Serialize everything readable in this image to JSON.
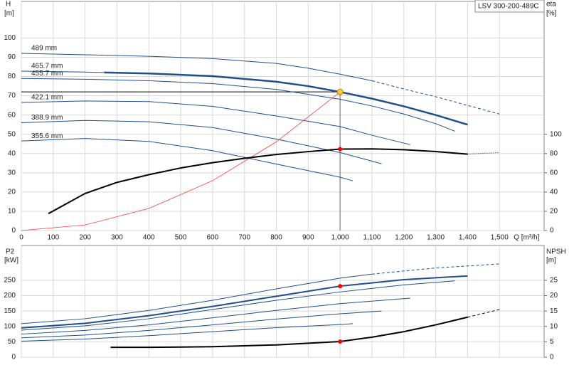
{
  "chart_data": [
    {
      "type": "line",
      "title": "LSV 300-200-489C",
      "x_label": "Q [m³/h]",
      "y_label": "H",
      "y_unit": "[m]",
      "y2_label": "eta",
      "y2_unit": "[%]",
      "xlim": [
        0,
        1640
      ],
      "xticks": [
        0,
        100,
        200,
        300,
        400,
        500,
        600,
        700,
        800,
        900,
        {
          "value": 1000,
          "label": "1,000"
        },
        {
          "value": 1100,
          "label": "1,100"
        },
        {
          "value": 1200,
          "label": "1,200"
        },
        {
          "value": 1300,
          "label": "1,300"
        },
        {
          "value": 1400,
          "label": "1,400"
        },
        {
          "value": 1500,
          "label": "1,500"
        }
      ],
      "ylim": [
        0,
        119
      ],
      "yticks": [
        0,
        10,
        20,
        30,
        40,
        50,
        60,
        70,
        80,
        90,
        100
      ],
      "y2lim": [
        0,
        238
      ],
      "y2ticks": [
        0,
        20,
        40,
        60,
        80,
        100
      ],
      "grid": true,
      "series": [
        {
          "name": "489 mm",
          "color": "#1f4f8a",
          "line_width": 1,
          "line_style": "solid",
          "x": [
            0,
            200,
            400,
            600,
            800,
            900,
            1000,
            1100
          ],
          "values": [
            92,
            91.3,
            90.5,
            89.3,
            86.8,
            84.3,
            81.2,
            77.8
          ]
        },
        {
          "color": "#1f4f8a",
          "line_width": 1,
          "line_style": "dashed",
          "x": [
            1100,
            1200,
            1300,
            1400,
            1500
          ],
          "values": [
            77.8,
            73.5,
            69.5,
            65,
            60.5
          ]
        },
        {
          "name": "465.7 mm",
          "color": "#1f4f8a",
          "line_width": 1,
          "line_style": "solid",
          "x": [
            0,
            200,
            400,
            600,
            800,
            900,
            1000,
            1100,
            1200,
            1300,
            1400
          ],
          "values": [
            82.8,
            82.3,
            81.6,
            80.2,
            77.3,
            75,
            72,
            68.5,
            64.5,
            60,
            55
          ]
        },
        {
          "color": "#1f4f8a",
          "line_width": 2.5,
          "line_style": "solid",
          "x": [
            260,
            400,
            600,
            800,
            900,
            1000,
            1100,
            1200,
            1300,
            1400
          ],
          "values": [
            82.1,
            81.6,
            80.2,
            77.3,
            75,
            72,
            68.5,
            64.5,
            60,
            55
          ]
        },
        {
          "name": "455.7 mm",
          "color": "#1f4f8a",
          "line_width": 1,
          "line_style": "solid",
          "x": [
            0,
            200,
            400,
            600,
            800,
            1000,
            1100,
            1200,
            1300,
            1360
          ],
          "values": [
            79,
            78.6,
            77.8,
            76.3,
            73.3,
            68.2,
            64.7,
            60.5,
            55.5,
            51.6
          ]
        },
        {
          "name": "422.1 mm",
          "color": "#1f4f8a",
          "line_width": 1,
          "line_style": "solid",
          "x": [
            0,
            200,
            400,
            600,
            800,
            1000,
            1100,
            1220
          ],
          "values": [
            66.5,
            67.3,
            67,
            64.5,
            59.5,
            54,
            49.5,
            44.6
          ]
        },
        {
          "name": "388.9 mm",
          "color": "#1f4f8a",
          "line_width": 1,
          "line_style": "solid",
          "x": [
            0,
            200,
            400,
            600,
            800,
            1000,
            1130
          ],
          "values": [
            56,
            57.2,
            56.5,
            53.5,
            47.5,
            40.5,
            34.7
          ]
        },
        {
          "name": "355.6 mm",
          "color": "#1f4f8a",
          "line_width": 1,
          "line_style": "solid",
          "x": [
            0,
            200,
            400,
            600,
            800,
            1000,
            1040
          ],
          "values": [
            46.5,
            47.8,
            46.3,
            41.5,
            34.5,
            27.7,
            25.8
          ]
        },
        {
          "color": "#ff3b3b",
          "line_width": 0.8,
          "line_style": "solid",
          "x": [
            0,
            200,
            400,
            600,
            800,
            1000
          ],
          "values": [
            0,
            2.9,
            11.5,
            25.9,
            46.1,
            72
          ]
        },
        {
          "axis": "y2",
          "color": "#000000",
          "line_width": 2,
          "line_style": "solid",
          "x": [
            85,
            200,
            300,
            400,
            500,
            600,
            700,
            800,
            900,
            1000,
            1100,
            1200,
            1300,
            1400
          ],
          "values": [
            17.6,
            38.5,
            50,
            58,
            65,
            70.5,
            75,
            79,
            82,
            84.6,
            84.8,
            84,
            82,
            79.4
          ]
        },
        {
          "axis": "y2",
          "color": "#000000",
          "line_width": 1,
          "line_style": "dotted",
          "x": [
            1400,
            1500
          ],
          "values": [
            79.4,
            81
          ]
        }
      ],
      "markers": [
        {
          "x": 1000,
          "y": 72,
          "color": "#ffcc33"
        },
        {
          "x": 1000,
          "y": 84.6,
          "axis": "y2",
          "color": "#ff0000"
        }
      ]
    },
    {
      "type": "line",
      "y_label": "P2",
      "y_unit": "[kW]",
      "y2_label": "NPSH",
      "y2_unit": "[m]",
      "xlim": [
        0,
        1640
      ],
      "xticks": [
        0,
        100,
        200,
        300,
        400,
        500,
        600,
        700,
        800,
        900,
        1000,
        1100,
        1200,
        1300,
        1400,
        1500
      ],
      "ylim": [
        0,
        363
      ],
      "yticks": [
        0,
        50,
        100,
        150,
        200,
        250
      ],
      "y2lim": [
        0,
        36.3
      ],
      "y2ticks": [
        0,
        5,
        10,
        15,
        20,
        25
      ],
      "grid": true,
      "series": [
        {
          "color": "#1f4f8a",
          "line_width": 1,
          "line_style": "solid",
          "x": [
            0,
            200,
            400,
            600,
            800,
            1000,
            1100
          ],
          "values": [
            109,
            125,
            152,
            185,
            222,
            257,
            270
          ]
        },
        {
          "color": "#1f4f8a",
          "line_width": 1,
          "line_style": "dashed",
          "x": [
            1100,
            1300,
            1500
          ],
          "values": [
            270,
            290,
            303
          ]
        },
        {
          "color": "#1f4f8a",
          "line_width": 2,
          "line_style": "solid",
          "x": [
            0,
            200,
            400,
            600,
            800,
            1000,
            1200,
            1400
          ],
          "values": [
            95,
            110,
            135,
            165,
            198,
            231,
            252,
            264
          ]
        },
        {
          "color": "#1f4f8a",
          "line_width": 1,
          "line_style": "solid",
          "x": [
            0,
            200,
            400,
            600,
            800,
            1000,
            1200,
            1360
          ],
          "values": [
            88,
            102,
            125,
            155,
            185,
            212,
            235,
            248
          ]
        },
        {
          "color": "#1f4f8a",
          "line_width": 1,
          "line_style": "solid",
          "x": [
            0,
            200,
            400,
            600,
            800,
            1000,
            1220
          ],
          "values": [
            75,
            87,
            105,
            128,
            152,
            174,
            192
          ]
        },
        {
          "color": "#1f4f8a",
          "line_width": 1,
          "line_style": "solid",
          "x": [
            0,
            200,
            400,
            600,
            800,
            1000,
            1130
          ],
          "values": [
            63,
            72,
            87,
            105,
            124,
            141,
            150
          ]
        },
        {
          "color": "#1f4f8a",
          "line_width": 1,
          "line_style": "solid",
          "x": [
            0,
            200,
            400,
            600,
            800,
            1000,
            1040
          ],
          "values": [
            52,
            59,
            70,
            83,
            96,
            106,
            109
          ]
        },
        {
          "axis": "y2",
          "color": "#000000",
          "line_width": 2,
          "line_style": "solid",
          "x": [
            280,
            400,
            600,
            800,
            1000,
            1100,
            1200,
            1300,
            1400
          ],
          "values": [
            3.2,
            3.2,
            3.4,
            4,
            5.1,
            6.5,
            8.3,
            10.5,
            13
          ]
        },
        {
          "axis": "y2",
          "color": "#000000",
          "line_width": 1,
          "line_style": "dashed",
          "x": [
            1400,
            1500
          ],
          "values": [
            13,
            15.5
          ]
        }
      ],
      "markers": [
        {
          "x": 1000,
          "y": 231,
          "color": "#ff0000"
        },
        {
          "x": 1000,
          "y": 5.1,
          "axis": "y2",
          "color": "#ff0000"
        }
      ]
    }
  ]
}
